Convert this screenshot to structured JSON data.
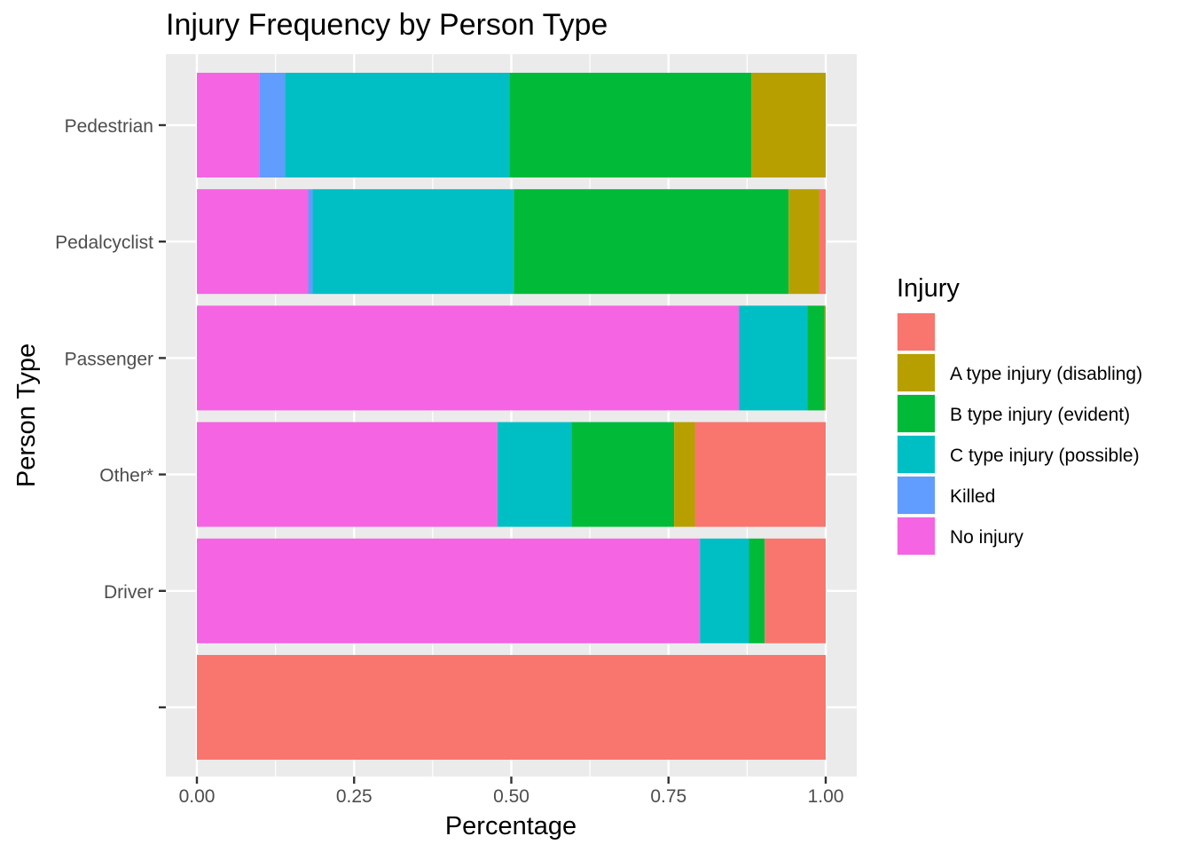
{
  "chart_data": {
    "type": "bar",
    "orientation": "horizontal",
    "stacked": "fill",
    "title": "Injury Frequency by Person Type",
    "xlabel": "Percentage",
    "ylabel": "Person Type",
    "xlim": [
      0,
      1
    ],
    "xticks": [
      "0.00",
      "0.25",
      "0.50",
      "0.75",
      "1.00"
    ],
    "grid": true,
    "legend": {
      "title": "Injury",
      "placement": "right"
    },
    "categories": [
      "",
      "Driver",
      "Other*",
      "Passenger",
      "Pedalcyclist",
      "Pedestrian"
    ],
    "series": [
      {
        "name": "",
        "color": "#F8766D",
        "values": [
          1.0,
          0.097,
          0.208,
          0.0,
          0.01,
          0.0
        ]
      },
      {
        "name": "A type injury (disabling)",
        "color": "#B79F00",
        "values": [
          0.0,
          0.0,
          0.033,
          0.002,
          0.049,
          0.118
        ]
      },
      {
        "name": "B type injury (evident)",
        "color": "#00BA38",
        "values": [
          0.0,
          0.025,
          0.163,
          0.027,
          0.437,
          0.385
        ]
      },
      {
        "name": "C type injury (possible)",
        "color": "#00BFC4",
        "values": [
          0.0,
          0.078,
          0.118,
          0.109,
          0.32,
          0.357
        ]
      },
      {
        "name": "Killed",
        "color": "#619CFF",
        "values": [
          0.0,
          0.0,
          0.0,
          0.0,
          0.007,
          0.041
        ]
      },
      {
        "name": "No injury",
        "color": "#F564E3",
        "values": [
          0.0,
          0.8,
          0.478,
          0.862,
          0.177,
          0.099
        ]
      }
    ]
  }
}
